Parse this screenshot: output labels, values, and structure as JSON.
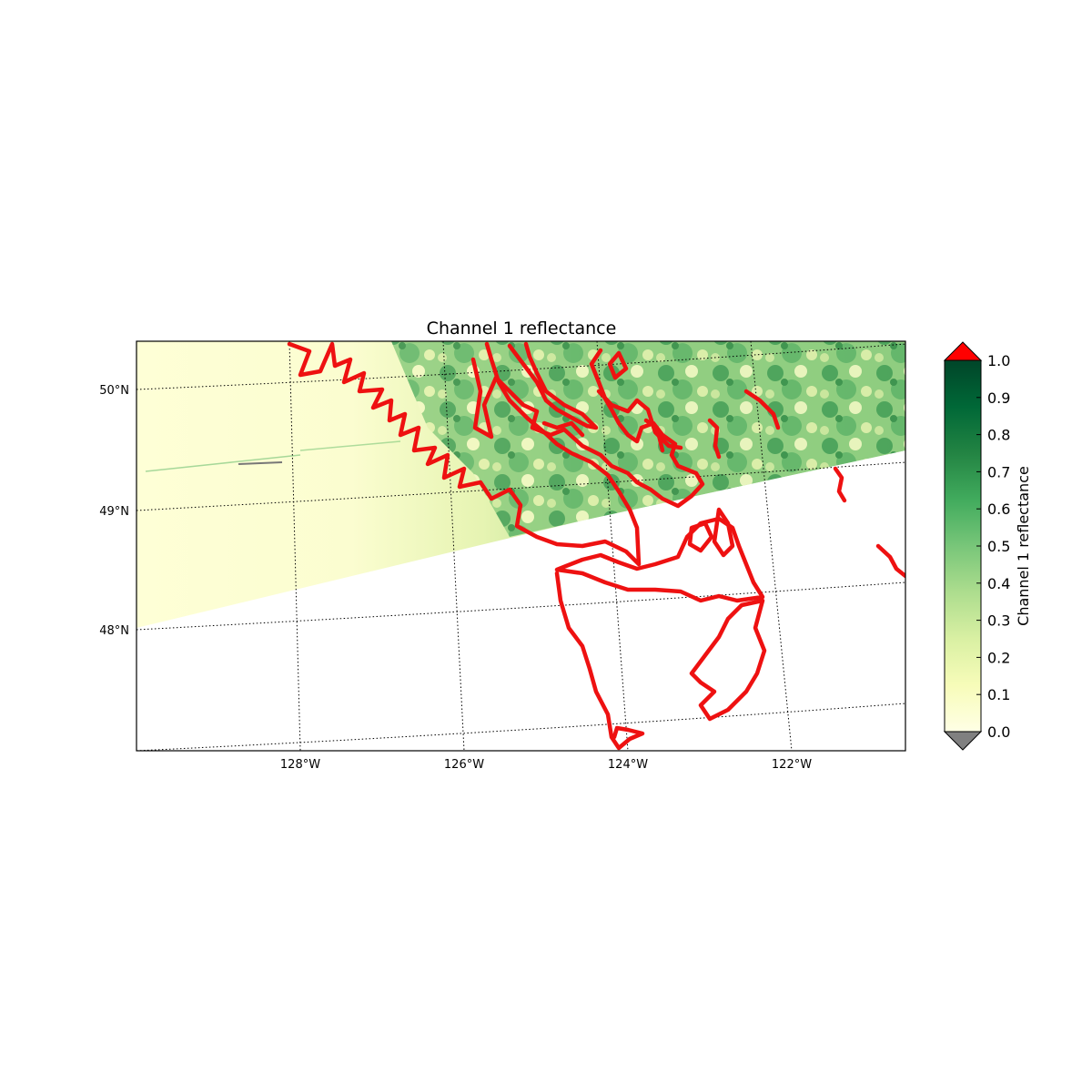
{
  "title": "Channel 1 reflectance",
  "map": {
    "latitude_labels": [
      "50°N",
      "49°N",
      "48°N"
    ],
    "longitude_labels": [
      "128°W",
      "126°W",
      "124°W",
      "122°W"
    ],
    "grid_style": "dotted",
    "coastline_color": "#ee1111",
    "no_data_color": "#ffffff"
  },
  "colorbar": {
    "label": "Channel 1 reflectance",
    "ticks": [
      "0.0",
      "0.1",
      "0.2",
      "0.3",
      "0.4",
      "0.5",
      "0.6",
      "0.7",
      "0.8",
      "0.9",
      "1.0"
    ],
    "min": 0.0,
    "max": 1.0,
    "colormap": "YlGn",
    "colormap_stops": [
      "#ffffe5",
      "#f7fcb9",
      "#d9f0a3",
      "#addd8e",
      "#78c679",
      "#41ab5d",
      "#238443",
      "#006837",
      "#004529"
    ],
    "over_color": "#ff0000",
    "under_color": "#808080"
  }
}
